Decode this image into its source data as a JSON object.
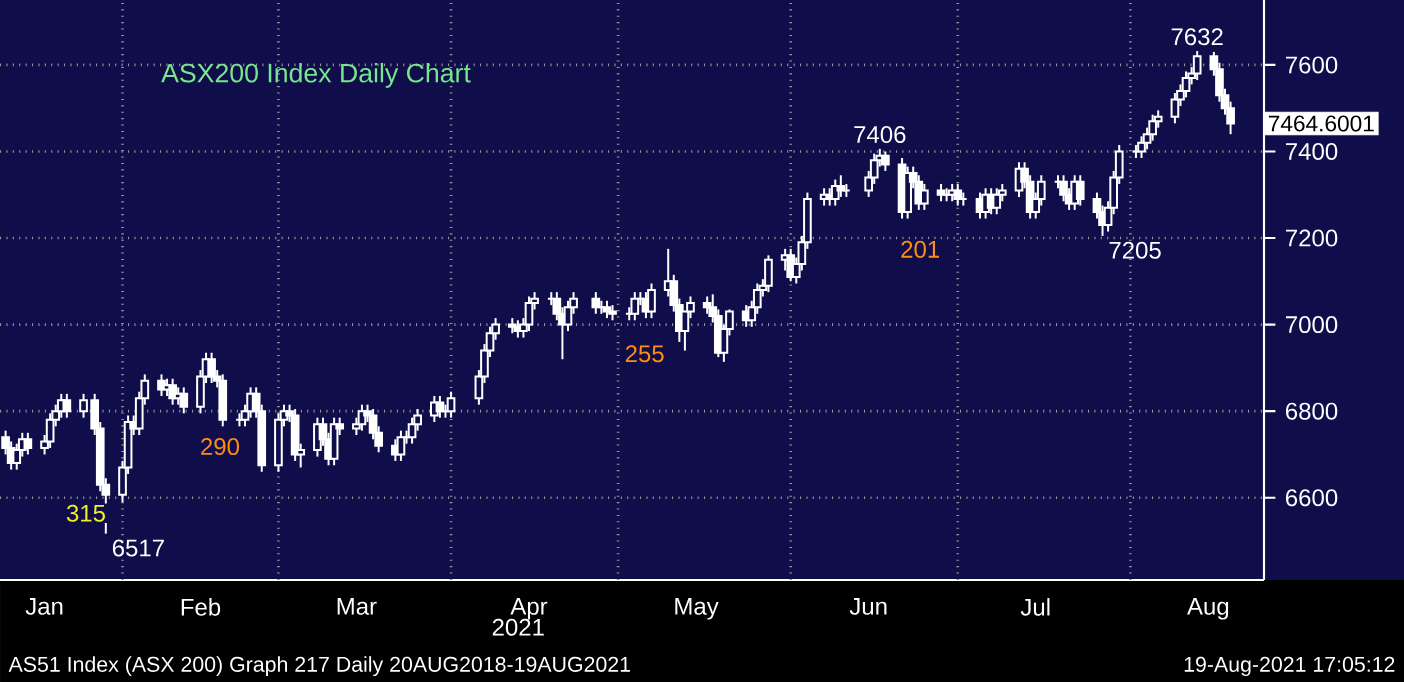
{
  "chart_data": {
    "type": "candlestick",
    "title": "ASX200 Index Daily Chart",
    "xlabel": "2021",
    "color": "#ffffff",
    "grid": true,
    "xlim": [
      "2021-01-10",
      "2021-08-25"
    ],
    "ylim": [
      6410,
      7750
    ],
    "yticks": [
      6600,
      6800,
      7000,
      7200,
      7400,
      7600
    ],
    "xticks": [
      {
        "value": "2021-01-18",
        "label": "Jan"
      },
      {
        "value": "2021-02-15",
        "label": "Feb"
      },
      {
        "value": "2021-03-15",
        "label": "Mar"
      },
      {
        "value": "2021-04-15",
        "label": "Apr"
      },
      {
        "value": "2021-05-15",
        "label": "May"
      },
      {
        "value": "2021-06-15",
        "label": "Jun"
      },
      {
        "value": "2021-07-15",
        "label": "Jul"
      },
      {
        "value": "2021-08-15",
        "label": "Aug"
      },
      {
        "value": "2021-02-01",
        "label": null
      },
      {
        "value": "2021-03-01",
        "label": null
      },
      {
        "value": "2021-04-01",
        "label": null
      },
      {
        "value": "2021-05-01",
        "label": null
      },
      {
        "value": "2021-06-01",
        "label": null
      },
      {
        "value": "2021-07-01",
        "label": null
      },
      {
        "value": "2021-08-01",
        "label": null
      }
    ],
    "x": [
      "2021-01-11",
      "2021-01-12",
      "2021-01-13",
      "2021-01-14",
      "2021-01-15",
      "2021-01-18",
      "2021-01-19",
      "2021-01-20",
      "2021-01-21",
      "2021-01-22",
      "2021-01-25",
      "2021-01-27",
      "2021-01-28",
      "2021-01-29",
      "2021-02-01",
      "2021-02-02",
      "2021-02-03",
      "2021-02-04",
      "2021-02-05",
      "2021-02-08",
      "2021-02-09",
      "2021-02-10",
      "2021-02-11",
      "2021-02-12",
      "2021-02-15",
      "2021-02-16",
      "2021-02-17",
      "2021-02-18",
      "2021-02-19",
      "2021-02-22",
      "2021-02-23",
      "2021-02-24",
      "2021-02-25",
      "2021-02-26",
      "2021-03-01",
      "2021-03-02",
      "2021-03-03",
      "2021-03-04",
      "2021-03-05",
      "2021-03-08",
      "2021-03-09",
      "2021-03-10",
      "2021-03-11",
      "2021-03-12",
      "2021-03-15",
      "2021-03-16",
      "2021-03-17",
      "2021-03-18",
      "2021-03-19",
      "2021-03-22",
      "2021-03-23",
      "2021-03-24",
      "2021-03-25",
      "2021-03-26",
      "2021-03-29",
      "2021-03-30",
      "2021-03-31",
      "2021-04-01",
      "2021-04-06",
      "2021-04-07",
      "2021-04-08",
      "2021-04-09",
      "2021-04-12",
      "2021-04-13",
      "2021-04-14",
      "2021-04-15",
      "2021-04-16",
      "2021-04-19",
      "2021-04-20",
      "2021-04-21",
      "2021-04-22",
      "2021-04-23",
      "2021-04-27",
      "2021-04-28",
      "2021-04-29",
      "2021-04-30",
      "2021-05-03",
      "2021-05-04",
      "2021-05-05",
      "2021-05-06",
      "2021-05-07",
      "2021-05-10",
      "2021-05-11",
      "2021-05-12",
      "2021-05-13",
      "2021-05-14",
      "2021-05-17",
      "2021-05-18",
      "2021-05-19",
      "2021-05-20",
      "2021-05-21",
      "2021-05-24",
      "2021-05-25",
      "2021-05-26",
      "2021-05-27",
      "2021-05-28",
      "2021-05-31",
      "2021-06-01",
      "2021-06-02",
      "2021-06-03",
      "2021-06-04",
      "2021-06-07",
      "2021-06-08",
      "2021-06-09",
      "2021-06-10",
      "2021-06-11",
      "2021-06-15",
      "2021-06-16",
      "2021-06-17",
      "2021-06-18",
      "2021-06-21",
      "2021-06-22",
      "2021-06-23",
      "2021-06-24",
      "2021-06-25",
      "2021-06-28",
      "2021-06-29",
      "2021-06-30",
      "2021-07-01",
      "2021-07-02",
      "2021-07-05",
      "2021-07-06",
      "2021-07-07",
      "2021-07-08",
      "2021-07-09",
      "2021-07-12",
      "2021-07-13",
      "2021-07-14",
      "2021-07-15",
      "2021-07-16",
      "2021-07-19",
      "2021-07-20",
      "2021-07-21",
      "2021-07-22",
      "2021-07-23",
      "2021-07-26",
      "2021-07-27",
      "2021-07-28",
      "2021-07-29",
      "2021-07-30",
      "2021-08-02",
      "2021-08-03",
      "2021-08-04",
      "2021-08-05",
      "2021-08-06",
      "2021-08-09",
      "2021-08-10",
      "2021-08-11",
      "2021-08-12",
      "2021-08-13",
      "2021-08-16",
      "2021-08-17",
      "2021-08-18",
      "2021-08-19"
    ],
    "ohlc": [
      [
        6740,
        6755,
        6700,
        6715
      ],
      [
        6715,
        6730,
        6665,
        6680
      ],
      [
        6680,
        6725,
        6665,
        6710
      ],
      [
        6710,
        6750,
        6695,
        6735
      ],
      [
        6735,
        6750,
        6700,
        6715
      ],
      [
        6715,
        6745,
        6700,
        6730
      ],
      [
        6730,
        6795,
        6715,
        6780
      ],
      [
        6780,
        6815,
        6765,
        6800
      ],
      [
        6800,
        6840,
        6785,
        6825
      ],
      [
        6825,
        6840,
        6785,
        6800
      ],
      [
        6800,
        6840,
        6785,
        6825
      ],
      [
        6825,
        6840,
        6745,
        6760
      ],
      [
        6760,
        6775,
        6615,
        6630
      ],
      [
        6630,
        6645,
        6517,
        6607
      ],
      [
        6607,
        6685,
        6590,
        6670
      ],
      [
        6670,
        6790,
        6655,
        6775
      ],
      [
        6775,
        6790,
        6745,
        6760
      ],
      [
        6760,
        6845,
        6745,
        6830
      ],
      [
        6830,
        6885,
        6815,
        6870
      ],
      [
        6870,
        6885,
        6835,
        6850
      ],
      [
        6850,
        6875,
        6835,
        6860
      ],
      [
        6860,
        6875,
        6815,
        6830
      ],
      [
        6830,
        6855,
        6815,
        6840
      ],
      [
        6840,
        6855,
        6795,
        6810
      ],
      [
        6810,
        6895,
        6795,
        6880
      ],
      [
        6880,
        6935,
        6865,
        6920
      ],
      [
        6920,
        6935,
        6865,
        6880
      ],
      [
        6880,
        6895,
        6855,
        6870
      ],
      [
        6870,
        6885,
        6765,
        6780
      ],
      [
        6780,
        6795,
        6765,
        6780
      ],
      [
        6780,
        6815,
        6765,
        6800
      ],
      [
        6800,
        6855,
        6785,
        6840
      ],
      [
        6840,
        6855,
        6785,
        6800
      ],
      [
        6800,
        6815,
        6660,
        6675
      ],
      [
        6675,
        6795,
        6660,
        6780
      ],
      [
        6780,
        6815,
        6765,
        6800
      ],
      [
        6800,
        6815,
        6775,
        6790
      ],
      [
        6790,
        6805,
        6685,
        6700
      ],
      [
        6700,
        6725,
        6670,
        6710
      ],
      [
        6710,
        6785,
        6695,
        6770
      ],
      [
        6770,
        6785,
        6720,
        6735
      ],
      [
        6735,
        6750,
        6675,
        6690
      ],
      [
        6690,
        6785,
        6675,
        6770
      ],
      [
        6770,
        6785,
        6745,
        6760
      ],
      [
        6760,
        6785,
        6745,
        6770
      ],
      [
        6770,
        6815,
        6755,
        6800
      ],
      [
        6800,
        6815,
        6775,
        6790
      ],
      [
        6790,
        6805,
        6735,
        6750
      ],
      [
        6750,
        6765,
        6705,
        6720
      ],
      [
        6720,
        6735,
        6685,
        6700
      ],
      [
        6700,
        6755,
        6685,
        6740
      ],
      [
        6740,
        6755,
        6725,
        6740
      ],
      [
        6740,
        6785,
        6725,
        6770
      ],
      [
        6770,
        6805,
        6755,
        6790
      ],
      [
        6790,
        6835,
        6775,
        6820
      ],
      [
        6820,
        6835,
        6785,
        6800
      ],
      [
        6800,
        6815,
        6785,
        6800
      ],
      [
        6800,
        6845,
        6785,
        6830
      ],
      [
        6830,
        6895,
        6815,
        6880
      ],
      [
        6880,
        6955,
        6865,
        6940
      ],
      [
        6940,
        6995,
        6925,
        6980
      ],
      [
        6980,
        7015,
        6965,
        7000
      ],
      [
        7000,
        7015,
        6980,
        6995
      ],
      [
        6995,
        7010,
        6970,
        6985
      ],
      [
        6985,
        7015,
        6970,
        7000
      ],
      [
        7000,
        7065,
        6985,
        7050
      ],
      [
        7050,
        7075,
        7035,
        7060
      ],
      [
        7060,
        7075,
        7045,
        7060
      ],
      [
        7060,
        7075,
        7010,
        7025
      ],
      [
        7025,
        7040,
        6920,
        7000
      ],
      [
        7000,
        7055,
        6985,
        7040
      ],
      [
        7040,
        7075,
        7025,
        7060
      ],
      [
        7060,
        7075,
        7025,
        7040
      ],
      [
        7040,
        7055,
        7025,
        7040
      ],
      [
        7040,
        7055,
        7015,
        7030
      ],
      [
        7030,
        7045,
        7010,
        7025
      ],
      [
        7025,
        7040,
        7010,
        7025
      ],
      [
        7025,
        7075,
        7010,
        7060
      ],
      [
        7060,
        7075,
        7045,
        7060
      ],
      [
        7060,
        7075,
        7015,
        7030
      ],
      [
        7030,
        7095,
        7015,
        7080
      ],
      [
        7080,
        7175,
        7065,
        7100
      ],
      [
        7100,
        7115,
        7030,
        7045
      ],
      [
        7045,
        7060,
        6960,
        6985
      ],
      [
        6985,
        7030,
        6940,
        7030
      ],
      [
        7030,
        7065,
        7015,
        7050
      ],
      [
        7050,
        7065,
        7025,
        7040
      ],
      [
        7040,
        7070,
        7005,
        7020
      ],
      [
        7020,
        7035,
        6925,
        6935
      ],
      [
        6935,
        7000,
        6914,
        6990
      ],
      [
        6990,
        7035,
        6975,
        7030
      ],
      [
        7030,
        7045,
        6995,
        7010
      ],
      [
        7010,
        7055,
        6995,
        7040
      ],
      [
        7040,
        7095,
        7025,
        7080
      ],
      [
        7080,
        7105,
        7065,
        7090
      ],
      [
        7090,
        7160,
        7075,
        7150
      ],
      [
        7150,
        7175,
        7125,
        7160
      ],
      [
        7160,
        7175,
        7100,
        7110
      ],
      [
        7110,
        7155,
        7095,
        7140
      ],
      [
        7140,
        7205,
        7125,
        7190
      ],
      [
        7190,
        7305,
        7175,
        7290
      ],
      [
        7290,
        7315,
        7275,
        7300
      ],
      [
        7300,
        7315,
        7275,
        7290
      ],
      [
        7290,
        7335,
        7275,
        7320
      ],
      [
        7320,
        7345,
        7295,
        7310
      ],
      [
        7310,
        7325,
        7295,
        7310
      ],
      [
        7310,
        7355,
        7295,
        7340
      ],
      [
        7340,
        7395,
        7325,
        7380
      ],
      [
        7380,
        7406,
        7365,
        7390
      ],
      [
        7390,
        7400,
        7355,
        7370
      ],
      [
        7370,
        7385,
        7245,
        7260
      ],
      [
        7260,
        7365,
        7245,
        7350
      ],
      [
        7350,
        7365,
        7315,
        7330
      ],
      [
        7330,
        7345,
        7265,
        7280
      ],
      [
        7280,
        7325,
        7265,
        7310
      ],
      [
        7310,
        7325,
        7285,
        7300
      ],
      [
        7300,
        7315,
        7285,
        7300
      ],
      [
        7300,
        7325,
        7285,
        7310
      ],
      [
        7310,
        7325,
        7275,
        7290
      ],
      [
        7290,
        7305,
        7275,
        7290
      ],
      [
        7290,
        7305,
        7245,
        7260
      ],
      [
        7260,
        7315,
        7245,
        7300
      ],
      [
        7300,
        7315,
        7255,
        7270
      ],
      [
        7270,
        7315,
        7255,
        7300
      ],
      [
        7300,
        7325,
        7285,
        7310
      ],
      [
        7310,
        7375,
        7295,
        7360
      ],
      [
        7360,
        7375,
        7315,
        7330
      ],
      [
        7330,
        7345,
        7245,
        7260
      ],
      [
        7260,
        7305,
        7245,
        7290
      ],
      [
        7290,
        7345,
        7275,
        7330
      ],
      [
        7330,
        7345,
        7315,
        7330
      ],
      [
        7330,
        7345,
        7285,
        7300
      ],
      [
        7300,
        7315,
        7265,
        7280
      ],
      [
        7280,
        7345,
        7265,
        7330
      ],
      [
        7330,
        7345,
        7275,
        7290
      ],
      [
        7290,
        7305,
        7245,
        7260
      ],
      [
        7260,
        7275,
        7205,
        7230
      ],
      [
        7230,
        7285,
        7215,
        7270
      ],
      [
        7270,
        7355,
        7255,
        7340
      ],
      [
        7340,
        7415,
        7325,
        7400
      ],
      [
        7400,
        7415,
        7385,
        7400
      ],
      [
        7400,
        7435,
        7385,
        7420
      ],
      [
        7420,
        7455,
        7405,
        7440
      ],
      [
        7440,
        7485,
        7425,
        7470
      ],
      [
        7470,
        7495,
        7455,
        7480
      ],
      [
        7480,
        7535,
        7465,
        7520
      ],
      [
        7520,
        7555,
        7505,
        7540
      ],
      [
        7540,
        7585,
        7525,
        7570
      ],
      [
        7570,
        7595,
        7555,
        7580
      ],
      [
        7580,
        7632,
        7565,
        7620
      ],
      [
        7620,
        7630,
        7575,
        7590
      ],
      [
        7590,
        7605,
        7515,
        7530
      ],
      [
        7530,
        7545,
        7485,
        7500
      ],
      [
        7500,
        7515,
        7440,
        7464.6001
      ]
    ],
    "annotations": [
      {
        "text": "7632",
        "x": "2021-08-13",
        "y": 7632
      },
      {
        "text": "7406",
        "x": "2021-06-17",
        "y": 7406
      },
      {
        "text": "7205",
        "x": "2021-07-27",
        "y": 7205
      },
      {
        "text": "6517",
        "x": "2021-01-29",
        "y": 6517
      },
      "315",
      "290",
      "255",
      "201",
      {
        "text": "7464.6001",
        "x": "2021-08-19",
        "y": 7464.6001
      },
      "AS51 Index (ASX 200) Graph 217 Daily 20AUG2018-19AUG2021",
      "19-Aug-2021 17:05:12"
    ]
  }
}
